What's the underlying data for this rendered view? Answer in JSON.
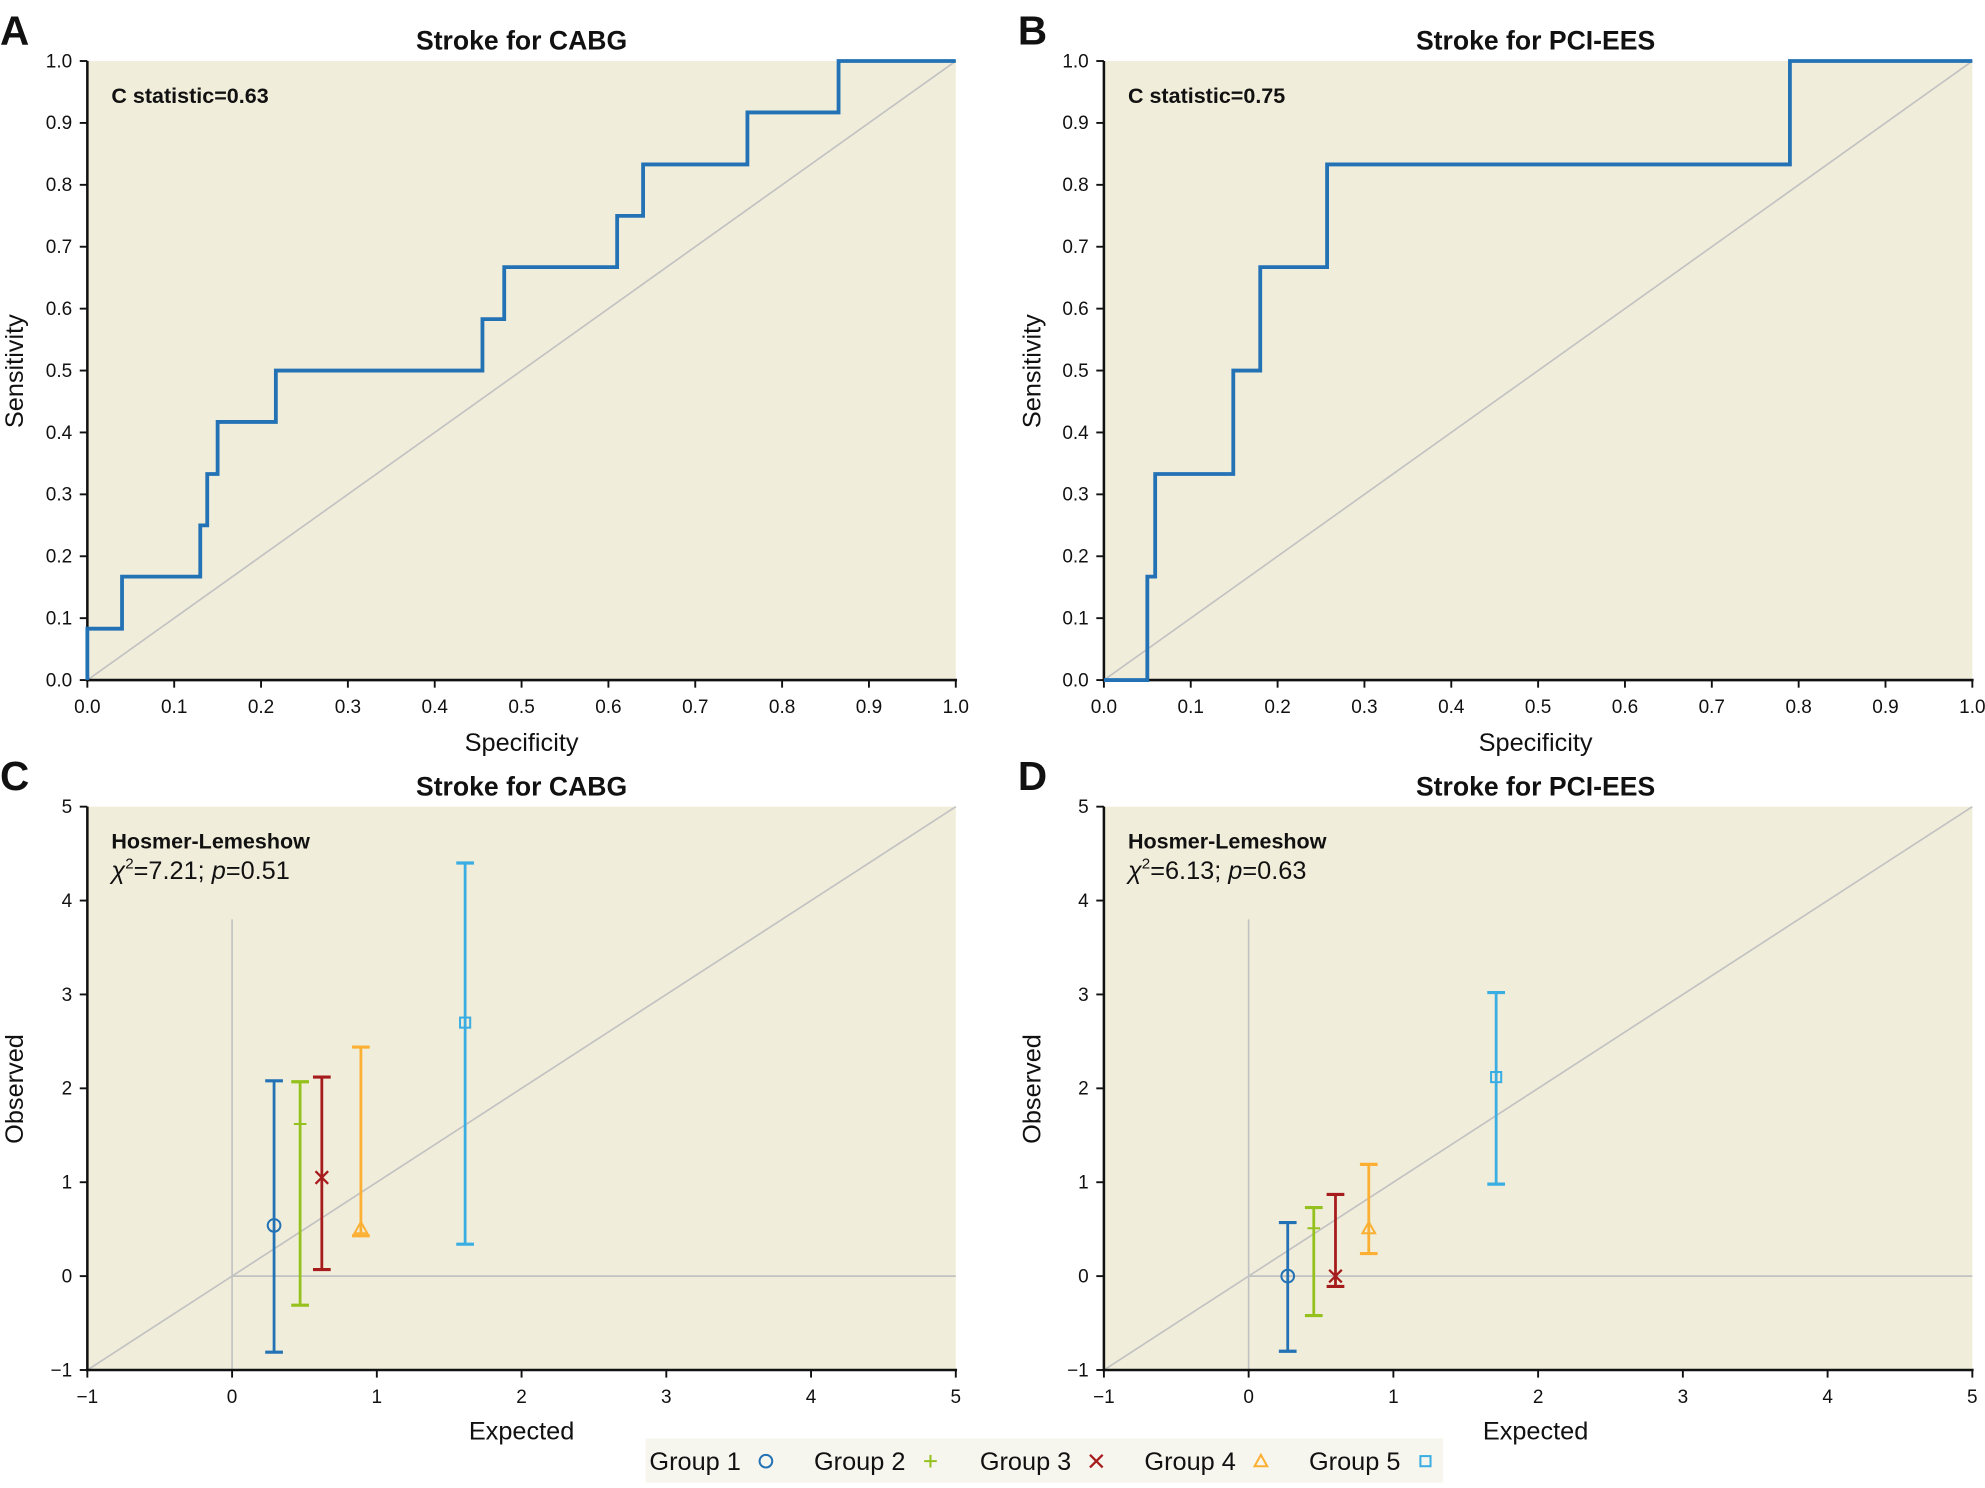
{
  "colors": {
    "plot_bg": "#f1eddb",
    "roc_line": "#2272b5",
    "reference_line": "#c2c2c2",
    "axis": "#111111",
    "legend_bg": "#f6f5ee"
  },
  "legend": {
    "items": [
      {
        "label": "Group 1",
        "marker": "circle",
        "color": "#2272b5"
      },
      {
        "label": "Group 2",
        "marker": "plus",
        "color": "#95c11f"
      },
      {
        "label": "Group 3",
        "marker": "x",
        "color": "#a61c1c"
      },
      {
        "label": "Group 4",
        "marker": "triangle",
        "color": "#fbb034"
      },
      {
        "label": "Group 5",
        "marker": "square",
        "color": "#3aaee2"
      }
    ]
  },
  "chart_data": [
    {
      "panel": "A",
      "type": "line",
      "title": "Stroke for CABG",
      "xlabel": "Specificity",
      "ylabel": "Sensitivity",
      "annotation": "C statistic=0.63",
      "xlim": [
        0,
        1
      ],
      "ylim": [
        0,
        1
      ],
      "xticks": [
        "0.0",
        "0.1",
        "0.2",
        "0.3",
        "0.4",
        "0.5",
        "0.6",
        "0.7",
        "0.8",
        "0.9",
        "1.0"
      ],
      "yticks": [
        "0.0",
        "0.1",
        "0.2",
        "0.3",
        "0.4",
        "0.5",
        "0.6",
        "0.7",
        "0.8",
        "0.9",
        "1.0"
      ],
      "grid": false,
      "reference_line": "diagonal",
      "series": [
        {
          "name": "ROC",
          "step": true,
          "x": [
            0,
            0,
            0.04,
            0.04,
            0.13,
            0.13,
            0.138,
            0.138,
            0.15,
            0.15,
            0.217,
            0.217,
            0.455,
            0.455,
            0.48,
            0.48,
            0.61,
            0.61,
            0.64,
            0.64,
            0.76,
            0.76,
            0.865,
            0.865,
            1.0
          ],
          "y": [
            0,
            0.083,
            0.083,
            0.167,
            0.167,
            0.25,
            0.25,
            0.333,
            0.333,
            0.417,
            0.417,
            0.5,
            0.5,
            0.583,
            0.583,
            0.667,
            0.667,
            0.75,
            0.75,
            0.833,
            0.833,
            0.917,
            0.917,
            1.0,
            1.0
          ]
        }
      ]
    },
    {
      "panel": "B",
      "type": "line",
      "title": "Stroke for PCI-EES",
      "xlabel": "Specificity",
      "ylabel": "Sensitivity",
      "annotation": "C statistic=0.75",
      "xlim": [
        0,
        1
      ],
      "ylim": [
        0,
        1
      ],
      "xticks": [
        "0.0",
        "0.1",
        "0.2",
        "0.3",
        "0.4",
        "0.5",
        "0.6",
        "0.7",
        "0.8",
        "0.9",
        "1.0"
      ],
      "yticks": [
        "0.0",
        "0.1",
        "0.2",
        "0.3",
        "0.4",
        "0.5",
        "0.6",
        "0.7",
        "0.8",
        "0.9",
        "1.0"
      ],
      "grid": false,
      "reference_line": "diagonal",
      "series": [
        {
          "name": "ROC",
          "step": true,
          "x": [
            0,
            0.05,
            0.05,
            0.059,
            0.059,
            0.149,
            0.149,
            0.18,
            0.18,
            0.257,
            0.257,
            0.79,
            0.79,
            1.0
          ],
          "y": [
            0,
            0,
            0.167,
            0.167,
            0.333,
            0.333,
            0.5,
            0.5,
            0.667,
            0.667,
            0.833,
            0.833,
            1.0,
            1.0
          ]
        }
      ]
    },
    {
      "panel": "C",
      "type": "scatter",
      "title": "Stroke for CABG",
      "xlabel": "Expected",
      "ylabel": "Observed",
      "annotation_title": "Hosmer-Lemeshow",
      "annotation_stat": {
        "chi2": "=7.21; ",
        "p_label": "p",
        "p_value": "=0.51"
      },
      "xlim": [
        -1,
        5
      ],
      "ylim": [
        -1,
        5
      ],
      "xticks": [
        "−1",
        "0",
        "1",
        "2",
        "3",
        "4",
        "5"
      ],
      "yticks": [
        "−1",
        "0",
        "1",
        "2",
        "3",
        "4",
        "5"
      ],
      "grid": false,
      "reference_line": "diagonal",
      "zero_lines": true,
      "series": [
        {
          "name": "Group 1",
          "x": 0.29,
          "y": 0.54,
          "lower": -0.81,
          "upper": 2.08
        },
        {
          "name": "Group 2",
          "x": 0.47,
          "y": 1.62,
          "lower": -0.31,
          "upper": 2.07
        },
        {
          "name": "Group 3",
          "x": 0.62,
          "y": 1.05,
          "lower": 0.07,
          "upper": 2.12
        },
        {
          "name": "Group 4",
          "x": 0.89,
          "y": 0.51,
          "lower": 0.43,
          "upper": 2.44
        },
        {
          "name": "Group 5",
          "x": 1.61,
          "y": 2.7,
          "lower": 0.34,
          "upper": 4.4
        }
      ]
    },
    {
      "panel": "D",
      "type": "scatter",
      "title": "Stroke for PCI-EES",
      "xlabel": "Expected",
      "ylabel": "Observed",
      "annotation_title": "Hosmer-Lemeshow",
      "annotation_stat": {
        "chi2": "=6.13; ",
        "p_label": "p",
        "p_value": "=0.63"
      },
      "xlim": [
        -1,
        5
      ],
      "ylim": [
        -1,
        5
      ],
      "xticks": [
        "−1",
        "0",
        "1",
        "2",
        "3",
        "4",
        "5"
      ],
      "yticks": [
        "−1",
        "0",
        "1",
        "2",
        "3",
        "4",
        "5"
      ],
      "grid": false,
      "reference_line": "diagonal",
      "zero_lines": true,
      "series": [
        {
          "name": "Group 1",
          "x": 0.27,
          "y": 0.0,
          "lower": -0.8,
          "upper": 0.57
        },
        {
          "name": "Group 2",
          "x": 0.45,
          "y": 0.51,
          "lower": -0.42,
          "upper": 0.73
        },
        {
          "name": "Group 3",
          "x": 0.6,
          "y": 0.0,
          "lower": -0.11,
          "upper": 0.87
        },
        {
          "name": "Group 4",
          "x": 0.83,
          "y": 0.51,
          "lower": 0.24,
          "upper": 1.19
        },
        {
          "name": "Group 5",
          "x": 1.71,
          "y": 2.12,
          "lower": 0.98,
          "upper": 3.02
        }
      ]
    }
  ]
}
